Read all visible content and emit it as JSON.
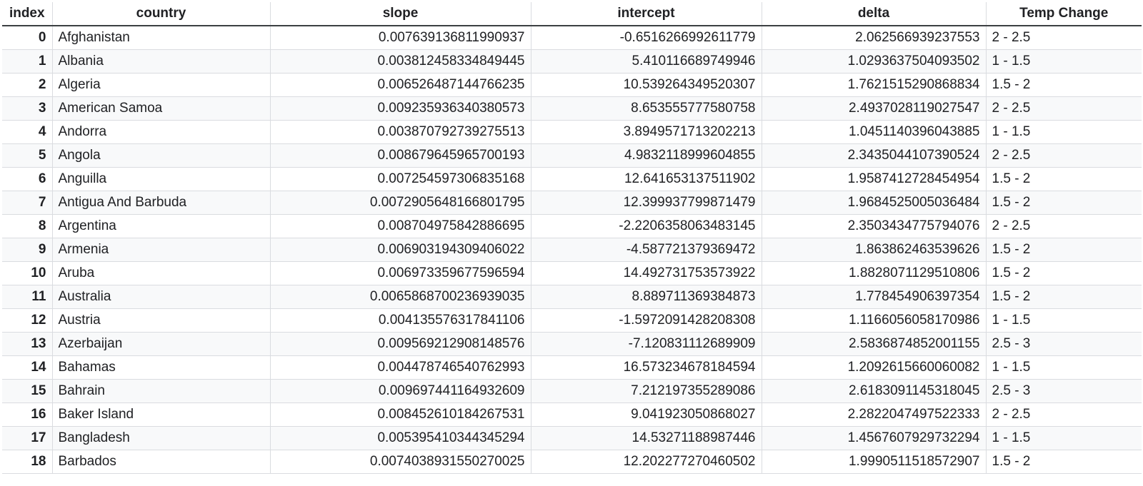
{
  "columns": {
    "index": "index",
    "country": "country",
    "slope": "slope",
    "intercept": "intercept",
    "delta": "delta",
    "temp_change": "Temp Change"
  },
  "rows": [
    {
      "index": "0",
      "country": "Afghanistan",
      "slope": "0.007639136811990937",
      "intercept": "-0.6516266992611779",
      "delta": "2.062566939237553",
      "temp_change": "2 - 2.5"
    },
    {
      "index": "1",
      "country": "Albania",
      "slope": "0.003812458334849445",
      "intercept": "5.410116689749946",
      "delta": "1.0293637504093502",
      "temp_change": "1 - 1.5"
    },
    {
      "index": "2",
      "country": "Algeria",
      "slope": "0.006526487144766235",
      "intercept": "10.539264349520307",
      "delta": "1.7621515290868834",
      "temp_change": "1.5 - 2"
    },
    {
      "index": "3",
      "country": "American Samoa",
      "slope": "0.009235936340380573",
      "intercept": "8.653555777580758",
      "delta": "2.4937028119027547",
      "temp_change": "2 - 2.5"
    },
    {
      "index": "4",
      "country": "Andorra",
      "slope": "0.003870792739275513",
      "intercept": "3.8949571713202213",
      "delta": "1.0451140396043885",
      "temp_change": "1 - 1.5"
    },
    {
      "index": "5",
      "country": "Angola",
      "slope": "0.008679645965700193",
      "intercept": "4.9832118999604855",
      "delta": "2.3435044107390524",
      "temp_change": "2 - 2.5"
    },
    {
      "index": "6",
      "country": "Anguilla",
      "slope": "0.007254597306835168",
      "intercept": "12.641653137511902",
      "delta": "1.9587412728454954",
      "temp_change": "1.5 - 2"
    },
    {
      "index": "7",
      "country": "Antigua And Barbuda",
      "slope": "0.0072905648166801795",
      "intercept": "12.399937799871479",
      "delta": "1.9684525005036484",
      "temp_change": "1.5 - 2"
    },
    {
      "index": "8",
      "country": "Argentina",
      "slope": "0.008704975842886695",
      "intercept": "-2.2206358063483145",
      "delta": "2.3503434775794076",
      "temp_change": "2 - 2.5"
    },
    {
      "index": "9",
      "country": "Armenia",
      "slope": "0.006903194309406022",
      "intercept": "-4.587721379369472",
      "delta": "1.863862463539626",
      "temp_change": "1.5 - 2"
    },
    {
      "index": "10",
      "country": "Aruba",
      "slope": "0.006973359677596594",
      "intercept": "14.492731753573922",
      "delta": "1.8828071129510806",
      "temp_change": "1.5 - 2"
    },
    {
      "index": "11",
      "country": "Australia",
      "slope": "0.0065868700236939035",
      "intercept": "8.889711369384873",
      "delta": "1.778454906397354",
      "temp_change": "1.5 - 2"
    },
    {
      "index": "12",
      "country": "Austria",
      "slope": "0.004135576317841106",
      "intercept": "-1.5972091428208308",
      "delta": "1.1166056058170986",
      "temp_change": "1 - 1.5"
    },
    {
      "index": "13",
      "country": "Azerbaijan",
      "slope": "0.009569212908148576",
      "intercept": "-7.120831112689909",
      "delta": "2.5836874852001155",
      "temp_change": "2.5 - 3"
    },
    {
      "index": "14",
      "country": "Bahamas",
      "slope": "0.004478746540762993",
      "intercept": "16.573234678184594",
      "delta": "1.2092615660060082",
      "temp_change": "1 - 1.5"
    },
    {
      "index": "15",
      "country": "Bahrain",
      "slope": "0.009697441164932609",
      "intercept": "7.212197355289086",
      "delta": "2.6183091145318045",
      "temp_change": "2.5 - 3"
    },
    {
      "index": "16",
      "country": "Baker Island",
      "slope": "0.008452610184267531",
      "intercept": "9.041923050868027",
      "delta": "2.2822047497522333",
      "temp_change": "2 - 2.5"
    },
    {
      "index": "17",
      "country": "Bangladesh",
      "slope": "0.005395410344345294",
      "intercept": "14.53271188987446",
      "delta": "1.4567607929732294",
      "temp_change": "1 - 1.5"
    },
    {
      "index": "18",
      "country": "Barbados",
      "slope": "0.0074038931550270025",
      "intercept": "12.202277270460502",
      "delta": "1.9990511518572907",
      "temp_change": "1.5 - 2"
    }
  ],
  "colors": {
    "header_border": "#3c4043",
    "grid_line": "#dadce0",
    "stripe": "#f8f9fa",
    "text": "#202124"
  }
}
